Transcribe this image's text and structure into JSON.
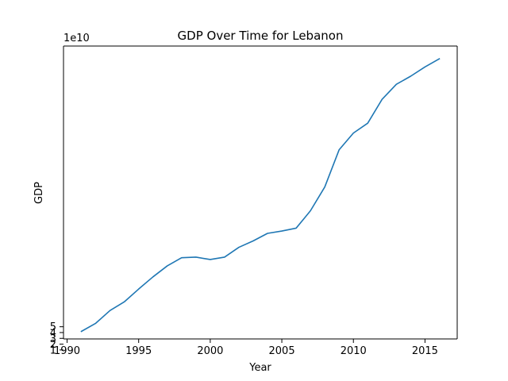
{
  "chart_data": {
    "type": "line",
    "title": "GDP Over Time for Lebanon",
    "xlabel": "Year",
    "ylabel": "GDP",
    "y_offset_label": "1e10",
    "y_scale_factor": 10000000000,
    "xlim": [
      1989.75,
      2017.25
    ],
    "ylim": [
      2.9,
      53.4
    ],
    "x_ticks": [
      1990,
      1995,
      2000,
      2005,
      2010,
      2015
    ],
    "y_ticks": [
      1,
      2,
      3,
      4,
      5
    ],
    "grid": false,
    "line_color": "#1f77b4",
    "series": [
      {
        "x": [
          1991,
          1992,
          1993,
          1994,
          1995,
          1996,
          1997,
          1998,
          1999,
          2000,
          2001,
          2002,
          2003,
          2004,
          2005,
          2006,
          2007,
          2008,
          2009,
          2010,
          2011,
          2012,
          2013,
          2014,
          2015,
          2016
        ],
        "values": [
          4.2,
          5.6,
          7.8,
          9.3,
          11.5,
          13.6,
          15.5,
          16.9,
          17.0,
          16.6,
          17.0,
          18.7,
          19.8,
          21.1,
          21.5,
          22.0,
          25.0,
          29.1,
          35.5,
          38.4,
          40.1,
          44.2,
          46.8,
          48.2,
          49.8,
          51.2
        ]
      }
    ]
  }
}
